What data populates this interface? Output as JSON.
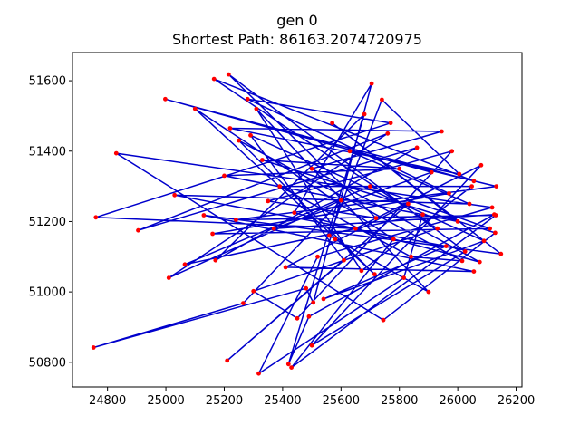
{
  "chart_data": {
    "type": "line",
    "title": "gen 0",
    "subtitle": "Shortest Path: 86163.2074720975",
    "xlabel": "",
    "ylabel": "",
    "xlim": [
      24680,
      26220
    ],
    "ylim": [
      50730,
      51680
    ],
    "x_ticks": [
      24800,
      25000,
      25200,
      25400,
      25600,
      25800,
      26000,
      26200
    ],
    "y_ticks": [
      50800,
      51000,
      51200,
      51400,
      51600
    ],
    "x_tick_labels": [
      "24800",
      "25000",
      "25200",
      "25400",
      "25600",
      "25800",
      "26000",
      "26200"
    ],
    "y_tick_labels": [
      "50800",
      "51000",
      "51200",
      "51400",
      "51600"
    ],
    "grid": false,
    "colors": {
      "path": "#0000cc",
      "city": "#ff0000"
    },
    "cities": [
      [
        24752,
        50842
      ],
      [
        24760,
        51212
      ],
      [
        24830,
        51394
      ],
      [
        24905,
        51175
      ],
      [
        24998,
        51548
      ],
      [
        25010,
        51040
      ],
      [
        25030,
        51275
      ],
      [
        25065,
        51078
      ],
      [
        25100,
        51520
      ],
      [
        25130,
        51218
      ],
      [
        25160,
        51165
      ],
      [
        25165,
        51605
      ],
      [
        25170,
        51090
      ],
      [
        25200,
        51330
      ],
      [
        25210,
        50805
      ],
      [
        25215,
        51618
      ],
      [
        25220,
        51465
      ],
      [
        25240,
        51205
      ],
      [
        25250,
        51430
      ],
      [
        25265,
        50968
      ],
      [
        25280,
        51548
      ],
      [
        25290,
        51445
      ],
      [
        25300,
        51002
      ],
      [
        25310,
        51520
      ],
      [
        25318,
        50768
      ],
      [
        25330,
        51375
      ],
      [
        25350,
        51258
      ],
      [
        25370,
        51180
      ],
      [
        25390,
        51300
      ],
      [
        25410,
        51070
      ],
      [
        25420,
        50795
      ],
      [
        25430,
        50785
      ],
      [
        25440,
        51225
      ],
      [
        25450,
        50925
      ],
      [
        25480,
        51010
      ],
      [
        25490,
        50930
      ],
      [
        25500,
        50848
      ],
      [
        25500,
        51350
      ],
      [
        25505,
        50970
      ],
      [
        25520,
        51100
      ],
      [
        25540,
        50980
      ],
      [
        25560,
        51160
      ],
      [
        25570,
        51480
      ],
      [
        25580,
        51150
      ],
      [
        25600,
        51260
      ],
      [
        25610,
        51090
      ],
      [
        25630,
        51400
      ],
      [
        25650,
        51180
      ],
      [
        25670,
        51060
      ],
      [
        25680,
        51505
      ],
      [
        25700,
        51300
      ],
      [
        25705,
        51592
      ],
      [
        25715,
        51050
      ],
      [
        25720,
        51210
      ],
      [
        25740,
        51546
      ],
      [
        25745,
        50920
      ],
      [
        25760,
        51450
      ],
      [
        25770,
        51480
      ],
      [
        25780,
        51150
      ],
      [
        25800,
        51350
      ],
      [
        25815,
        51040
      ],
      [
        25830,
        51250
      ],
      [
        25840,
        51100
      ],
      [
        25860,
        51410
      ],
      [
        25880,
        51220
      ],
      [
        25900,
        51000
      ],
      [
        25910,
        51340
      ],
      [
        25930,
        51180
      ],
      [
        25945,
        51456
      ],
      [
        25960,
        51130
      ],
      [
        25970,
        51280
      ],
      [
        25980,
        51400
      ],
      [
        26000,
        51200
      ],
      [
        26005,
        51335
      ],
      [
        26015,
        51088
      ],
      [
        26025,
        51115
      ],
      [
        26040,
        51250
      ],
      [
        26048,
        51300
      ],
      [
        26055,
        51058
      ],
      [
        26055,
        51315
      ],
      [
        26075,
        51085
      ],
      [
        26080,
        51360
      ],
      [
        26090,
        51145
      ],
      [
        26110,
        51180
      ],
      [
        26118,
        51240
      ],
      [
        26125,
        51220
      ],
      [
        26128,
        51168
      ],
      [
        26130,
        51218
      ],
      [
        26132,
        51300
      ],
      [
        26148,
        51108
      ]
    ],
    "route": [
      0,
      19,
      44,
      5,
      56,
      3,
      63,
      12,
      49,
      30,
      35,
      85,
      27,
      66,
      4,
      79,
      11,
      67,
      22,
      33,
      71,
      26,
      53,
      15,
      75,
      36,
      81,
      47,
      1,
      57,
      20,
      70,
      10,
      83,
      50,
      7,
      64,
      60,
      24,
      39,
      84,
      2,
      55,
      86,
      25,
      59,
      13,
      72,
      42,
      89,
      9,
      78,
      29,
      61,
      14,
      45,
      21,
      82,
      40,
      69,
      6,
      76,
      46,
      88,
      17,
      87,
      31,
      58,
      8,
      52,
      18,
      74,
      62,
      28,
      77,
      48,
      23,
      65,
      43,
      41,
      54,
      73,
      16,
      68,
      37,
      80,
      32,
      51,
      38,
      34,
      0
    ]
  }
}
